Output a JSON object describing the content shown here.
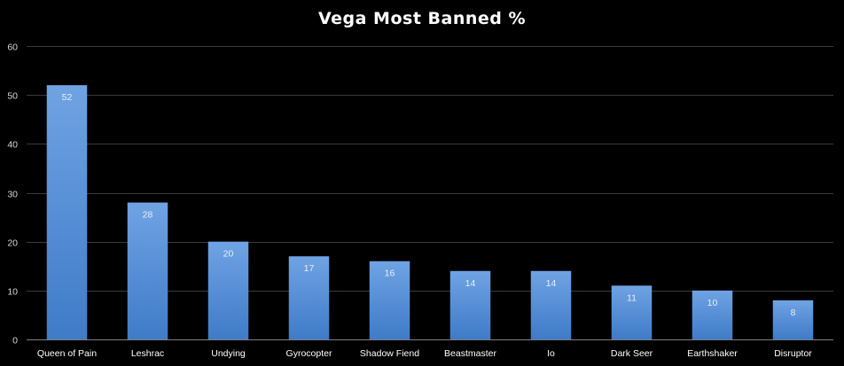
{
  "chart_data": {
    "type": "bar",
    "title": "Vega Most Banned %",
    "xlabel": "",
    "ylabel": "",
    "categories": [
      "Queen of Pain",
      "Leshrac",
      "Undying",
      "Gyrocopter",
      "Shadow Fiend",
      "Beastmaster",
      "Io",
      "Dark Seer",
      "Earthshaker",
      "Disruptor"
    ],
    "values": [
      52,
      28,
      20,
      17,
      16,
      14,
      14,
      11,
      10,
      8
    ],
    "data_labels": [
      "52",
      "28",
      "20",
      "17",
      "16",
      "14",
      "14",
      "11",
      "10",
      "8"
    ],
    "ylim": [
      0,
      60
    ],
    "yticks": [
      0,
      10,
      20,
      30,
      40,
      50,
      60
    ],
    "ytick_labels": [
      "0",
      "10",
      "20",
      "30",
      "40",
      "50",
      "60"
    ],
    "grid": true,
    "legend": "none"
  },
  "colors": {
    "background": "#000000",
    "bar_top": "#6fa3e3",
    "bar_bottom": "#3f7bc8",
    "gridline": "#3a3a3a",
    "axis": "#7f7f7f"
  }
}
